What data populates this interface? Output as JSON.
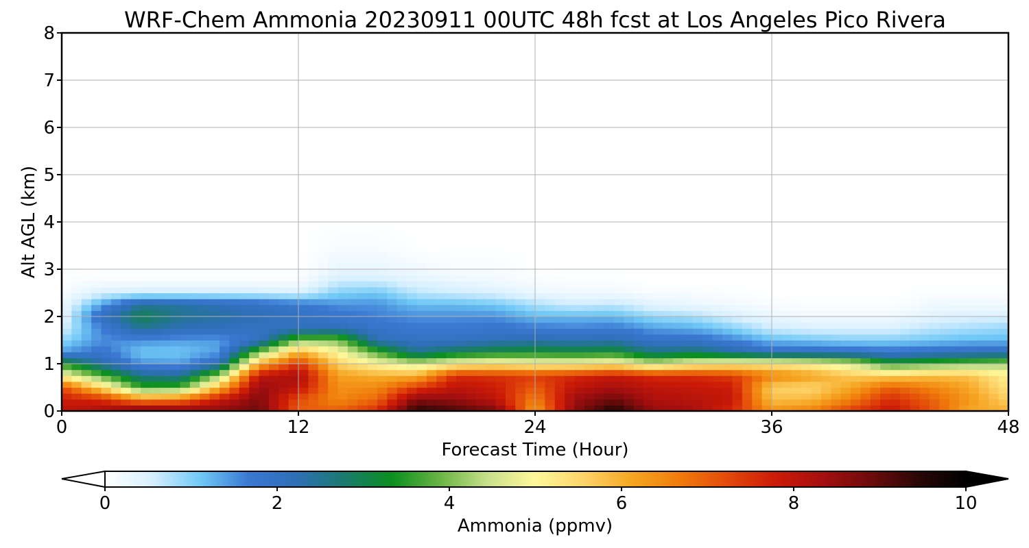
{
  "chart_data": {
    "type": "heatmap",
    "title": "WRF-Chem Ammonia  20230911 00UTC 48h fcst at Los Angeles Pico Rivera",
    "xlabel": "Forecast Time (Hour)",
    "ylabel": "Alt AGL (km)",
    "xlim": [
      0,
      48
    ],
    "ylim": [
      0,
      8
    ],
    "x_ticks": [
      0,
      12,
      24,
      36,
      48
    ],
    "y_ticks": [
      0,
      1,
      2,
      3,
      4,
      5,
      6,
      7,
      8
    ],
    "grid": true,
    "colorbar": {
      "label": "Ammonia  (ppmv)",
      "min": 0,
      "max": 10,
      "ticks": [
        0,
        2,
        4,
        6,
        8,
        10
      ],
      "extend": "both",
      "palette": [
        "#ffffff",
        "#d6efff",
        "#6fc8f6",
        "#3a78d2",
        "#2e6fb7",
        "#1a7a6e",
        "#0a8f1f",
        "#6ab443",
        "#c8e08b",
        "#fff79a",
        "#fdd469",
        "#f6a623",
        "#f07c0c",
        "#e34a0a",
        "#cc1b07",
        "#a50f0f",
        "#6e0b0b",
        "#2a0707",
        "#000000"
      ]
    },
    "profiles_hours": [
      0,
      2,
      4,
      6,
      8,
      10,
      12,
      14,
      16,
      18,
      20,
      22,
      24,
      26,
      28,
      30,
      32,
      34,
      36,
      38,
      40,
      42,
      44,
      46,
      48
    ],
    "profiles_alt_km": [
      0,
      0.25,
      0.5,
      0.75,
      1.0,
      1.25,
      1.5,
      1.75,
      2.0,
      2.25,
      2.5,
      2.75,
      3.0,
      3.5,
      4.0,
      5.0,
      6.0,
      8.0
    ],
    "values_ppmv": [
      [
        8.0,
        7.8,
        7.2,
        5.0,
        3.5,
        1.4,
        0.9,
        0.5,
        0.3,
        0.2,
        0.1,
        0.05,
        0,
        0,
        0,
        0,
        0,
        0
      ],
      [
        8.3,
        7.6,
        5.5,
        3.8,
        2.4,
        1.8,
        1.5,
        1.6,
        2.0,
        1.4,
        0.5,
        0.1,
        0,
        0,
        0,
        0,
        0,
        0
      ],
      [
        9.0,
        6.5,
        3.6,
        2.6,
        1.5,
        1.1,
        1.5,
        2.5,
        3.0,
        2.5,
        0.6,
        0.1,
        0,
        0,
        0,
        0,
        0,
        0
      ],
      [
        8.8,
        6.7,
        3.7,
        2.5,
        1.4,
        1.1,
        1.4,
        2.2,
        2.5,
        2.4,
        0.6,
        0.1,
        0,
        0,
        0,
        0,
        0,
        0
      ],
      [
        8.6,
        7.9,
        6.0,
        4.2,
        2.2,
        1.4,
        1.4,
        2.1,
        2.4,
        2.2,
        0.6,
        0.1,
        0,
        0,
        0,
        0,
        0,
        0
      ],
      [
        8.9,
        8.7,
        8.5,
        8.0,
        6.0,
        4.0,
        2.0,
        2.0,
        2.2,
        2.0,
        0.6,
        0.1,
        0,
        0,
        0,
        0,
        0,
        0
      ],
      [
        7.0,
        7.2,
        8.0,
        8.3,
        7.5,
        6.0,
        4.0,
        2.1,
        2.0,
        1.8,
        0.5,
        0.1,
        0,
        0,
        0,
        0,
        0,
        0
      ],
      [
        7.0,
        6.5,
        6.4,
        6.2,
        5.6,
        5.0,
        4.0,
        2.2,
        1.8,
        1.5,
        1.0,
        0.6,
        0.3,
        0.1,
        0,
        0,
        0,
        0
      ],
      [
        7.6,
        6.9,
        6.5,
        6.0,
        5.0,
        3.7,
        2.2,
        1.9,
        1.6,
        1.5,
        1.1,
        0.6,
        0.3,
        0.1,
        0,
        0,
        0,
        0
      ],
      [
        9.5,
        8.7,
        7.4,
        6.0,
        4.5,
        2.5,
        2.0,
        1.7,
        1.5,
        1.2,
        0.7,
        0.4,
        0.2,
        0,
        0,
        0,
        0,
        0
      ],
      [
        9.2,
        8.5,
        8.0,
        7.6,
        5.0,
        3.0,
        2.0,
        1.7,
        1.5,
        1.2,
        0.6,
        0.3,
        0.1,
        0,
        0,
        0,
        0,
        0
      ],
      [
        8.8,
        8.0,
        7.8,
        7.5,
        5.2,
        3.2,
        2.2,
        1.8,
        1.5,
        1.1,
        0.5,
        0.2,
        0.1,
        0,
        0,
        0,
        0,
        0
      ],
      [
        6.2,
        6.6,
        7.0,
        7.4,
        5.0,
        3.3,
        2.3,
        1.7,
        1.2,
        0.8,
        0.3,
        0.1,
        0,
        0,
        0,
        0,
        0,
        0
      ],
      [
        8.6,
        8.4,
        8.0,
        7.6,
        5.0,
        3.2,
        2.2,
        1.6,
        1.2,
        0.6,
        0.2,
        0.05,
        0,
        0,
        0,
        0,
        0,
        0
      ],
      [
        9.6,
        8.9,
        8.3,
        7.9,
        5.2,
        3.3,
        2.3,
        1.7,
        1.2,
        0.7,
        0.2,
        0.05,
        0,
        0,
        0,
        0,
        0,
        0
      ],
      [
        8.5,
        8.2,
        8.0,
        7.6,
        4.5,
        2.6,
        1.9,
        1.4,
        0.9,
        0.4,
        0.1,
        0,
        0,
        0,
        0,
        0,
        0,
        0
      ],
      [
        8.3,
        8.1,
        7.9,
        7.6,
        5.0,
        2.8,
        1.9,
        1.3,
        0.8,
        0.3,
        0.1,
        0,
        0,
        0,
        0,
        0,
        0,
        0
      ],
      [
        7.6,
        7.9,
        7.8,
        7.4,
        5.2,
        2.4,
        1.6,
        1.0,
        0.5,
        0.2,
        0.05,
        0,
        0,
        0,
        0,
        0,
        0,
        0
      ],
      [
        6.4,
        5.8,
        5.6,
        6.6,
        5.2,
        2.0,
        1.2,
        0.6,
        0.3,
        0.1,
        0,
        0,
        0,
        0,
        0,
        0,
        0,
        0
      ],
      [
        6.6,
        5.9,
        5.5,
        6.2,
        5.0,
        2.0,
        1.1,
        0.5,
        0.2,
        0.05,
        0,
        0,
        0,
        0,
        0,
        0,
        0,
        0
      ],
      [
        7.4,
        6.6,
        6.1,
        5.7,
        4.6,
        1.9,
        1.0,
        0.5,
        0.2,
        0.05,
        0,
        0,
        0,
        0,
        0,
        0,
        0,
        0
      ],
      [
        7.9,
        7.6,
        7.0,
        5.6,
        3.5,
        1.8,
        1.0,
        0.5,
        0.2,
        0.05,
        0,
        0,
        0,
        0,
        0,
        0,
        0,
        0
      ],
      [
        7.2,
        7.0,
        6.6,
        5.8,
        3.8,
        1.9,
        1.1,
        0.7,
        0.4,
        0.2,
        0.05,
        0,
        0,
        0,
        0,
        0,
        0,
        0
      ],
      [
        6.1,
        6.3,
        6.1,
        5.8,
        4.0,
        2.0,
        1.2,
        0.8,
        0.5,
        0.2,
        0.05,
        0,
        0,
        0,
        0,
        0,
        0,
        0
      ],
      [
        6.0,
        5.6,
        5.3,
        5.1,
        4.2,
        2.1,
        1.2,
        0.9,
        0.5,
        0.2,
        0.05,
        0,
        0,
        0,
        0,
        0,
        0,
        0
      ]
    ]
  }
}
